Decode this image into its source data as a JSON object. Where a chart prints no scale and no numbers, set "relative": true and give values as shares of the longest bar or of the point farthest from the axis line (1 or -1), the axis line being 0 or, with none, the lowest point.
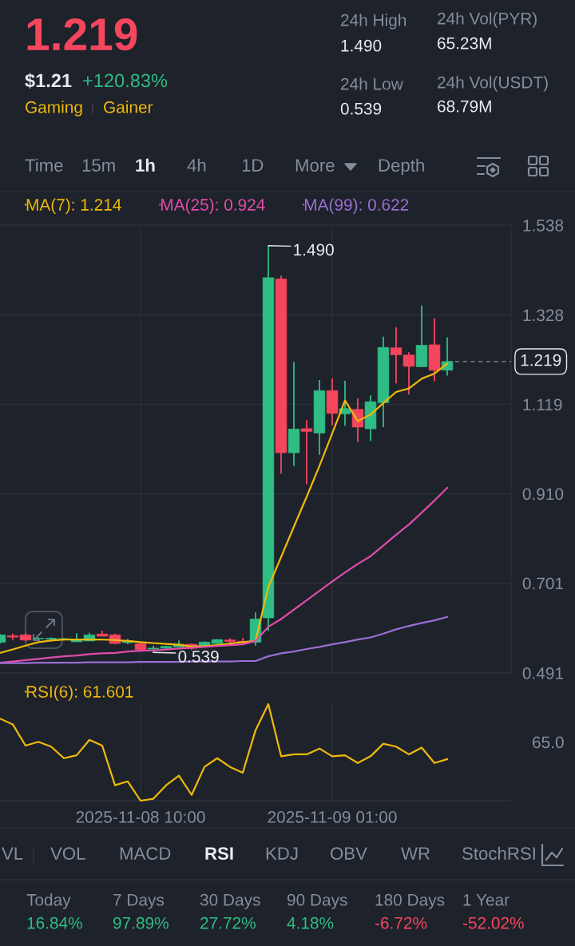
{
  "chart_data": [
    {
      "type": "other",
      "annotations": [
        "1.219",
        "$1.21",
        "+120.83%",
        "Gaming",
        "Gainer",
        "24h High",
        "1.490",
        "24h Low",
        "0.539",
        "24h Vol(PYR)",
        "65.23M",
        "24h Vol(USDT)",
        "68.79M",
        "Time",
        "15m",
        "1h",
        "4h",
        "1D",
        "More",
        "Depth"
      ]
    },
    {
      "type": "candlestick",
      "x": [
        "2025-11-07T23:00",
        "2025-11-08T00:00",
        "2025-11-08T01:00",
        "2025-11-08T02:00",
        "2025-11-08T03:00",
        "2025-11-08T04:00",
        "2025-11-08T05:00",
        "2025-11-08T06:00",
        "2025-11-08T07:00",
        "2025-11-08T08:00",
        "2025-11-08T09:00",
        "2025-11-08T10:00",
        "2025-11-08T11:00",
        "2025-11-08T12:00",
        "2025-11-08T13:00",
        "2025-11-08T14:00",
        "2025-11-08T15:00",
        "2025-11-08T16:00",
        "2025-11-08T17:00",
        "2025-11-08T18:00",
        "2025-11-08T19:00",
        "2025-11-08T20:00",
        "2025-11-08T21:00",
        "2025-11-08T22:00",
        "2025-11-08T23:00",
        "2025-11-09T00:00",
        "2025-11-09T01:00",
        "2025-11-09T02:00",
        "2025-11-09T03:00",
        "2025-11-09T04:00",
        "2025-11-09T05:00",
        "2025-11-09T06:00",
        "2025-11-09T07:00",
        "2025-11-09T08:00",
        "2025-11-09T09:00",
        "2025-11-09T10:00"
      ],
      "ohlc": [
        [
          0.563,
          0.582,
          0.56,
          0.58
        ],
        [
          0.578,
          0.583,
          0.568,
          0.575
        ],
        [
          0.58,
          0.584,
          0.565,
          0.568
        ],
        [
          0.571,
          0.574,
          0.569,
          0.572
        ],
        [
          0.57,
          0.574,
          0.568,
          0.572
        ],
        [
          0.569,
          0.573,
          0.567,
          0.571
        ],
        [
          0.564,
          0.584,
          0.564,
          0.569
        ],
        [
          0.566,
          0.585,
          0.566,
          0.58
        ],
        [
          0.582,
          0.59,
          0.577,
          0.577
        ],
        [
          0.58,
          0.583,
          0.558,
          0.56
        ],
        [
          0.562,
          0.571,
          0.558,
          0.566
        ],
        [
          0.559,
          0.564,
          0.546,
          0.546
        ],
        [
          0.547,
          0.555,
          0.539,
          0.549
        ],
        [
          0.549,
          0.555,
          0.546,
          0.553
        ],
        [
          0.552,
          0.567,
          0.552,
          0.558
        ],
        [
          0.558,
          0.56,
          0.545,
          0.549
        ],
        [
          0.553,
          0.565,
          0.552,
          0.563
        ],
        [
          0.56,
          0.57,
          0.558,
          0.569
        ],
        [
          0.568,
          0.572,
          0.56,
          0.565
        ],
        [
          0.565,
          0.573,
          0.56,
          0.562
        ],
        [
          0.563,
          0.633,
          0.555,
          0.617
        ],
        [
          0.62,
          1.49,
          0.589,
          1.415
        ],
        [
          1.412,
          1.42,
          0.957,
          1.006
        ],
        [
          1.006,
          1.218,
          0.975,
          1.061
        ],
        [
          1.062,
          1.082,
          0.932,
          1.056
        ],
        [
          1.052,
          1.176,
          1.001,
          1.151
        ],
        [
          1.151,
          1.179,
          1.07,
          1.098
        ],
        [
          1.097,
          1.174,
          1.069,
          1.109
        ],
        [
          1.107,
          1.133,
          1.031,
          1.066
        ],
        [
          1.062,
          1.14,
          1.033,
          1.125
        ],
        [
          1.123,
          1.277,
          1.066,
          1.252
        ],
        [
          1.251,
          1.299,
          1.168,
          1.235
        ],
        [
          1.234,
          1.241,
          1.142,
          1.208
        ],
        [
          1.207,
          1.35,
          1.207,
          1.257
        ],
        [
          1.258,
          1.32,
          1.173,
          1.199
        ],
        [
          1.199,
          1.276,
          1.186,
          1.219
        ]
      ],
      "colors": [
        "#2ebd85",
        "#f6465d",
        "#f6465d",
        "#2ebd85",
        "#2ebd85",
        "#2ebd85",
        "#2ebd85",
        "#2ebd85",
        "#f6465d",
        "#f6465d",
        "#2ebd85",
        "#f6465d",
        "#2ebd85",
        "#2ebd85",
        "#2ebd85",
        "#f6465d",
        "#2ebd85",
        "#2ebd85",
        "#f6465d",
        "#f6465d",
        "#2ebd85",
        "#2ebd85",
        "#f6465d",
        "#2ebd85",
        "#f6465d",
        "#2ebd85",
        "#f6465d",
        "#2ebd85",
        "#f6465d",
        "#2ebd85",
        "#2ebd85",
        "#f6465d",
        "#f6465d",
        "#2ebd85",
        "#f6465d",
        "#2ebd85"
      ],
      "series": [
        {
          "name": "MA(7): 1.214",
          "type": "line",
          "color": "#f0b90b",
          "values": [
            0.538,
            0.546,
            0.555,
            0.563,
            0.567,
            0.569,
            0.569,
            0.569,
            0.569,
            0.568,
            0.566,
            0.563,
            0.561,
            0.559,
            0.557,
            0.553,
            0.554,
            0.556,
            0.56,
            0.563,
            0.566,
            0.692,
            0.762,
            0.833,
            0.903,
            0.975,
            1.051,
            1.128,
            1.08,
            1.095,
            1.122,
            1.148,
            1.156,
            1.179,
            1.191,
            1.214
          ]
        },
        {
          "name": "MA(25): 0.924",
          "type": "line",
          "color": "#e04caa",
          "values": [
            0.515,
            0.518,
            0.521,
            0.524,
            0.527,
            0.53,
            0.532,
            0.535,
            0.537,
            0.538,
            0.541,
            0.543,
            0.544,
            0.546,
            0.548,
            0.55,
            0.552,
            0.554,
            0.556,
            0.558,
            0.566,
            0.599,
            0.617,
            0.639,
            0.661,
            0.683,
            0.705,
            0.726,
            0.746,
            0.764,
            0.789,
            0.814,
            0.838,
            0.866,
            0.894,
            0.924
          ]
        },
        {
          "name": "MA(99): 0.622",
          "type": "line",
          "color": "#9a6ed4",
          "values": [
            0.514,
            0.514,
            0.514,
            0.515,
            0.515,
            0.515,
            0.515,
            0.516,
            0.516,
            0.516,
            0.516,
            0.517,
            0.517,
            0.517,
            0.517,
            0.518,
            0.518,
            0.518,
            0.518,
            0.519,
            0.519,
            0.53,
            0.537,
            0.541,
            0.547,
            0.552,
            0.558,
            0.563,
            0.569,
            0.574,
            0.583,
            0.593,
            0.601,
            0.608,
            0.614,
            0.622
          ]
        }
      ],
      "ylim": [
        0.491,
        1.538
      ],
      "yticks": [
        1.538,
        1.328,
        1.119,
        {
          "value": 0.91,
          "label": "0.910"
        },
        0.701,
        0.491
      ],
      "xlim": [
        "2025-11-07T23:00",
        "2025-11-09T15:00"
      ],
      "xticks": [
        {
          "value": "2025-11-08T10:00",
          "label": null
        },
        {
          "value": "2025-11-09T01:00",
          "label": null
        }
      ],
      "tick_labels": "y",
      "grid": true,
      "legend": "top left",
      "ref_lines": [
        {
          "axis": "y",
          "value": 1.219,
          "label": "1.219",
          "color": "#848e9c",
          "line_style": "dashed"
        }
      ],
      "annotations": [
        {
          "text": "1.490",
          "x": "2025-11-08T20:00",
          "y": 1.49
        },
        {
          "text": "0.539",
          "x": "2025-11-08T11:00",
          "y": 0.539
        }
      ]
    },
    {
      "type": "line",
      "relative": true,
      "x": [
        "2025-11-07T23:00",
        "2025-11-08T00:00",
        "2025-11-08T01:00",
        "2025-11-08T02:00",
        "2025-11-08T03:00",
        "2025-11-08T04:00",
        "2025-11-08T05:00",
        "2025-11-08T06:00",
        "2025-11-08T07:00",
        "2025-11-08T08:00",
        "2025-11-08T09:00",
        "2025-11-08T10:00",
        "2025-11-08T11:00",
        "2025-11-08T12:00",
        "2025-11-08T13:00",
        "2025-11-08T14:00",
        "2025-11-08T15:00",
        "2025-11-08T16:00",
        "2025-11-08T17:00",
        "2025-11-08T18:00",
        "2025-11-08T19:00",
        "2025-11-08T20:00",
        "2025-11-08T21:00",
        "2025-11-08T22:00",
        "2025-11-08T23:00",
        "2025-11-09T00:00",
        "2025-11-09T01:00",
        "2025-11-09T02:00",
        "2025-11-09T03:00",
        "2025-11-09T04:00",
        "2025-11-09T05:00",
        "2025-11-09T06:00",
        "2025-11-09T07:00",
        "2025-11-09T08:00",
        "2025-11-09T09:00",
        "2025-11-09T10:00"
      ],
      "series": [
        {
          "name": "RSI(6): 61.601",
          "color": "#f0b90b",
          "values": [
            0.85,
            0.79,
            0.57,
            0.61,
            0.56,
            0.44,
            0.47,
            0.63,
            0.57,
            0.16,
            0.2,
            0,
            0.02,
            0.16,
            0.26,
            0.06,
            0.35,
            0.44,
            0.35,
            0.29,
            0.73,
            1,
            0.46,
            0.48,
            0.48,
            0.54,
            0.46,
            0.47,
            0.39,
            0.46,
            0.59,
            0.56,
            0.48,
            0.55,
            0.39,
            0.43
          ]
        }
      ],
      "xlim": [
        "2025-11-07T23:00",
        "2025-11-09T15:00"
      ],
      "xticks": [
        {
          "value": "2025-11-08T10:00",
          "label": "2025-11-08 10:00"
        },
        {
          "value": "2025-11-09T01:00",
          "label": "2025-11-09 01:00"
        }
      ],
      "grid": "x",
      "legend": "top left",
      "annotations": [
        "65.0"
      ]
    },
    {
      "type": "other",
      "annotations": [
        "VL",
        "VOL",
        "MACD",
        "RSI",
        "KDJ",
        "OBV",
        "WR",
        "StochRSI"
      ],
      "categories": [
        "Today",
        "7 Days",
        "30 Days",
        "90 Days",
        "180 Days",
        "1 Year"
      ],
      "value_labels": [
        "16.84%",
        "97.89%",
        "27.72%",
        "4.18%",
        "-6.72%",
        "-52.02%"
      ],
      "colors": [
        "#2ebd85",
        "#2ebd85",
        "#2ebd85",
        "#2ebd85",
        "#f6465d",
        "#f6465d"
      ]
    }
  ]
}
